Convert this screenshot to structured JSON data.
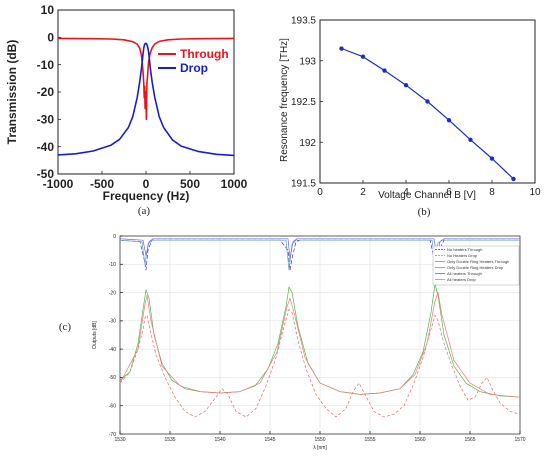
{
  "chart_data": [
    {
      "id": "a",
      "type": "line",
      "caption": "(a)",
      "xlabel": "Frequency (Hz)",
      "ylabel": "Transmission (dB)",
      "xlim": [
        -1000,
        1000
      ],
      "ylim": [
        -50,
        10
      ],
      "xticks": [
        -1000,
        -500,
        0,
        500,
        1000
      ],
      "yticks": [
        10,
        0,
        -10,
        -20,
        -30,
        -40,
        -50
      ],
      "legend_position": "top-right",
      "grid": false,
      "series": [
        {
          "name": "Through",
          "color": "#e8141b",
          "points": [
            [
              -1000,
              -0.4
            ],
            [
              -600,
              -0.5
            ],
            [
              -400,
              -0.6
            ],
            [
              -250,
              -0.9
            ],
            [
              -150,
              -1.6
            ],
            [
              -100,
              -2.5
            ],
            [
              -70,
              -4
            ],
            [
              -50,
              -7
            ],
            [
              -35,
              -12
            ],
            [
              -25,
              -17
            ],
            [
              -20,
              -22
            ],
            [
              -15,
              -18
            ],
            [
              -10,
              -26
            ],
            [
              -5,
              -20
            ],
            [
              0,
              -22
            ],
            [
              5,
              -30
            ],
            [
              10,
              -17
            ],
            [
              20,
              -13
            ],
            [
              30,
              -9
            ],
            [
              45,
              -6
            ],
            [
              70,
              -3.8
            ],
            [
              100,
              -2.4
            ],
            [
              150,
              -1.5
            ],
            [
              250,
              -0.9
            ],
            [
              400,
              -0.6
            ],
            [
              600,
              -0.5
            ],
            [
              1000,
              -0.4
            ]
          ]
        },
        {
          "name": "Drop",
          "color": "#1420c8",
          "points": [
            [
              -1000,
              -43
            ],
            [
              -800,
              -42.6
            ],
            [
              -600,
              -41.6
            ],
            [
              -400,
              -39.5
            ],
            [
              -300,
              -37.3
            ],
            [
              -200,
              -33
            ],
            [
              -150,
              -29
            ],
            [
              -100,
              -22
            ],
            [
              -70,
              -16
            ],
            [
              -50,
              -11
            ],
            [
              -35,
              -6.5
            ],
            [
              -25,
              -3.8
            ],
            [
              -15,
              -2.5
            ],
            [
              -5,
              -2.2
            ],
            [
              5,
              -2.3
            ],
            [
              15,
              -3
            ],
            [
              25,
              -4.5
            ],
            [
              35,
              -7
            ],
            [
              50,
              -11.5
            ],
            [
              70,
              -16.5
            ],
            [
              100,
              -22
            ],
            [
              150,
              -29
            ],
            [
              200,
              -33
            ],
            [
              300,
              -37.5
            ],
            [
              400,
              -39.8
            ],
            [
              600,
              -41.8
            ],
            [
              800,
              -42.8
            ],
            [
              1000,
              -43.2
            ]
          ]
        }
      ]
    },
    {
      "id": "b",
      "type": "line",
      "caption": "(b)",
      "xlabel": "Voltage Channel B [V]",
      "ylabel": "Resonance frequency [THz]",
      "xlim": [
        0,
        10
      ],
      "ylim": [
        191.5,
        193.5
      ],
      "xticks": [
        0,
        2,
        4,
        6,
        8,
        10
      ],
      "yticks": [
        193.5,
        193,
        192.5,
        192,
        191.5
      ],
      "grid": false,
      "series": [
        {
          "name": "",
          "color": "#1a2fbf",
          "markers": true,
          "points": [
            [
              1,
              193.15
            ],
            [
              2,
              193.05
            ],
            [
              3,
              192.88
            ],
            [
              4,
              192.7
            ],
            [
              5,
              192.5
            ],
            [
              6,
              192.27
            ],
            [
              7,
              192.03
            ],
            [
              8,
              191.8
            ],
            [
              9,
              191.55
            ]
          ]
        }
      ]
    },
    {
      "id": "c",
      "type": "line",
      "caption": "(c)",
      "xlabel": "λ [nm]",
      "ylabel": "Outputs [dB]",
      "xlim": [
        1530,
        1570
      ],
      "ylim": [
        -70,
        0
      ],
      "xticks": [
        1530,
        1535,
        1540,
        1545,
        1550,
        1555,
        1560,
        1565,
        1570
      ],
      "yticks": [
        0,
        -10,
        -20,
        -30,
        -40,
        -50,
        -60,
        -70
      ],
      "legend_position": "top-right",
      "grid": true,
      "series": [
        {
          "name": "No heaters Through",
          "color": "#3a3aa0",
          "dash": "4,2",
          "points": [
            [
              1530,
              -1.5
            ],
            [
              1532,
              -2
            ],
            [
              1532.4,
              -8
            ],
            [
              1532.6,
              -12
            ],
            [
              1532.8,
              -5
            ],
            [
              1533.2,
              -1.5
            ],
            [
              1546,
              -1.5
            ],
            [
              1546.8,
              -5
            ],
            [
              1547,
              -12
            ],
            [
              1547.2,
              -8
            ],
            [
              1547.6,
              -2
            ],
            [
              1548,
              -1.5
            ],
            [
              1561,
              -1.5
            ],
            [
              1561.3,
              -6
            ],
            [
              1561.6,
              -12
            ],
            [
              1561.9,
              -5
            ],
            [
              1562.4,
              -1.5
            ],
            [
              1570,
              -1.5
            ]
          ]
        },
        {
          "name": "No Heaters Drop",
          "color": "#e06a6a",
          "dash": "3,2",
          "points": [
            [
              1530,
              -52
            ],
            [
              1531,
              -48
            ],
            [
              1531.8,
              -40
            ],
            [
              1532.3,
              -33
            ],
            [
              1532.5,
              -29
            ],
            [
              1532.7,
              -28
            ],
            [
              1533,
              -33
            ],
            [
              1533.6,
              -42
            ],
            [
              1534.5,
              -50
            ],
            [
              1535.5,
              -57
            ],
            [
              1536.5,
              -62
            ],
            [
              1537.5,
              -64
            ],
            [
              1538.5,
              -62
            ],
            [
              1539.6,
              -57
            ],
            [
              1540.2,
              -54
            ],
            [
              1540.8,
              -56
            ],
            [
              1541.6,
              -62
            ],
            [
              1542.6,
              -64
            ],
            [
              1543.6,
              -61
            ],
            [
              1544.6,
              -53
            ],
            [
              1545.6,
              -43
            ],
            [
              1546.4,
              -32
            ],
            [
              1546.9,
              -26
            ],
            [
              1547.2,
              -27
            ],
            [
              1547.8,
              -37
            ],
            [
              1548.6,
              -47
            ],
            [
              1549.6,
              -56
            ],
            [
              1550.6,
              -61
            ],
            [
              1551.6,
              -64
            ],
            [
              1552.6,
              -61
            ],
            [
              1553.3,
              -55
            ],
            [
              1553.9,
              -52
            ],
            [
              1554.5,
              -56
            ],
            [
              1555.4,
              -62
            ],
            [
              1556.4,
              -64
            ],
            [
              1557.4,
              -63
            ],
            [
              1558.4,
              -60
            ],
            [
              1559.4,
              -52
            ],
            [
              1560.3,
              -43
            ],
            [
              1561.1,
              -33
            ],
            [
              1561.5,
              -28
            ],
            [
              1561.8,
              -30
            ],
            [
              1562.4,
              -38
            ],
            [
              1563.2,
              -46
            ],
            [
              1564,
              -53
            ],
            [
              1564.8,
              -58
            ],
            [
              1565.5,
              -57
            ],
            [
              1566.2,
              -52
            ],
            [
              1566.7,
              -50
            ],
            [
              1567.2,
              -54
            ],
            [
              1568,
              -59
            ],
            [
              1569,
              -62
            ],
            [
              1570,
              -63
            ]
          ]
        },
        {
          "name": "Only Double Ring Heaters Through",
          "color": "#5b9ad6",
          "points": [
            [
              1530,
              -1.5
            ],
            [
              1532.2,
              -2
            ],
            [
              1532.5,
              -10
            ],
            [
              1532.8,
              -3
            ],
            [
              1533.2,
              -1.5
            ],
            [
              1546.6,
              -1.5
            ],
            [
              1546.9,
              -12
            ],
            [
              1547.2,
              -3
            ],
            [
              1547.6,
              -1.5
            ],
            [
              1561.2,
              -1.5
            ],
            [
              1561.5,
              -8
            ],
            [
              1561.8,
              -2.5
            ],
            [
              1562.2,
              -1.5
            ],
            [
              1570,
              -1.5
            ]
          ]
        },
        {
          "name": "Only Double Ring Heaters Drop",
          "color": "#4fb84f",
          "points": [
            [
              1530,
              -51
            ],
            [
              1531,
              -48
            ],
            [
              1531.8,
              -38
            ],
            [
              1532.3,
              -26
            ],
            [
              1532.6,
              -19
            ],
            [
              1532.9,
              -22
            ],
            [
              1533.4,
              -35
            ],
            [
              1534.2,
              -45
            ],
            [
              1535.2,
              -51
            ],
            [
              1536.5,
              -54
            ],
            [
              1538,
              -55
            ],
            [
              1540,
              -55.5
            ],
            [
              1542,
              -55
            ],
            [
              1543.5,
              -53
            ],
            [
              1544.8,
              -47
            ],
            [
              1545.8,
              -38
            ],
            [
              1546.6,
              -25
            ],
            [
              1546.9,
              -18
            ],
            [
              1547.2,
              -20
            ],
            [
              1547.8,
              -32
            ],
            [
              1548.8,
              -45
            ],
            [
              1550,
              -52
            ],
            [
              1552,
              -55
            ],
            [
              1554,
              -56
            ],
            [
              1556,
              -55.5
            ],
            [
              1558,
              -54
            ],
            [
              1559.3,
              -49
            ],
            [
              1560.3,
              -41
            ],
            [
              1561.1,
              -27
            ],
            [
              1561.5,
              -17
            ],
            [
              1561.8,
              -21
            ],
            [
              1562.4,
              -35
            ],
            [
              1563.4,
              -46
            ],
            [
              1564.6,
              -52
            ],
            [
              1566,
              -55
            ],
            [
              1568,
              -56.5
            ],
            [
              1570,
              -57
            ]
          ]
        },
        {
          "name": "All heaters Through",
          "color": "#6a6ad8",
          "points": [
            [
              1530,
              -1
            ],
            [
              1532.3,
              -1.5
            ],
            [
              1532.6,
              -7
            ],
            [
              1532.9,
              -2
            ],
            [
              1533.3,
              -1
            ],
            [
              1546.8,
              -1
            ],
            [
              1547,
              -8
            ],
            [
              1547.3,
              -2
            ],
            [
              1547.7,
              -1
            ],
            [
              1561.4,
              -1
            ],
            [
              1561.7,
              -7
            ],
            [
              1562,
              -2
            ],
            [
              1562.4,
              -1
            ],
            [
              1570,
              -1
            ]
          ]
        },
        {
          "name": "All heaters Drop",
          "color": "#ec7a7a",
          "points": [
            [
              1530,
              -52
            ],
            [
              1531.8,
              -40
            ],
            [
              1532.5,
              -24
            ],
            [
              1532.7,
              -21
            ],
            [
              1533.1,
              -30
            ],
            [
              1534.2,
              -46
            ],
            [
              1536,
              -53
            ],
            [
              1538,
              -55
            ],
            [
              1540,
              -55.5
            ],
            [
              1542,
              -55
            ],
            [
              1544,
              -52
            ],
            [
              1545.7,
              -41
            ],
            [
              1546.7,
              -25
            ],
            [
              1547,
              -22
            ],
            [
              1547.4,
              -27
            ],
            [
              1548.5,
              -43
            ],
            [
              1550,
              -52
            ],
            [
              1552,
              -55
            ],
            [
              1554,
              -56
            ],
            [
              1556,
              -55.5
            ],
            [
              1558,
              -54
            ],
            [
              1559.5,
              -49
            ],
            [
              1560.7,
              -38
            ],
            [
              1561.5,
              -23
            ],
            [
              1561.8,
              -20
            ],
            [
              1562.2,
              -28
            ],
            [
              1563.4,
              -44
            ],
            [
              1565,
              -52
            ],
            [
              1567,
              -56
            ],
            [
              1570,
              -57
            ]
          ]
        }
      ]
    }
  ]
}
